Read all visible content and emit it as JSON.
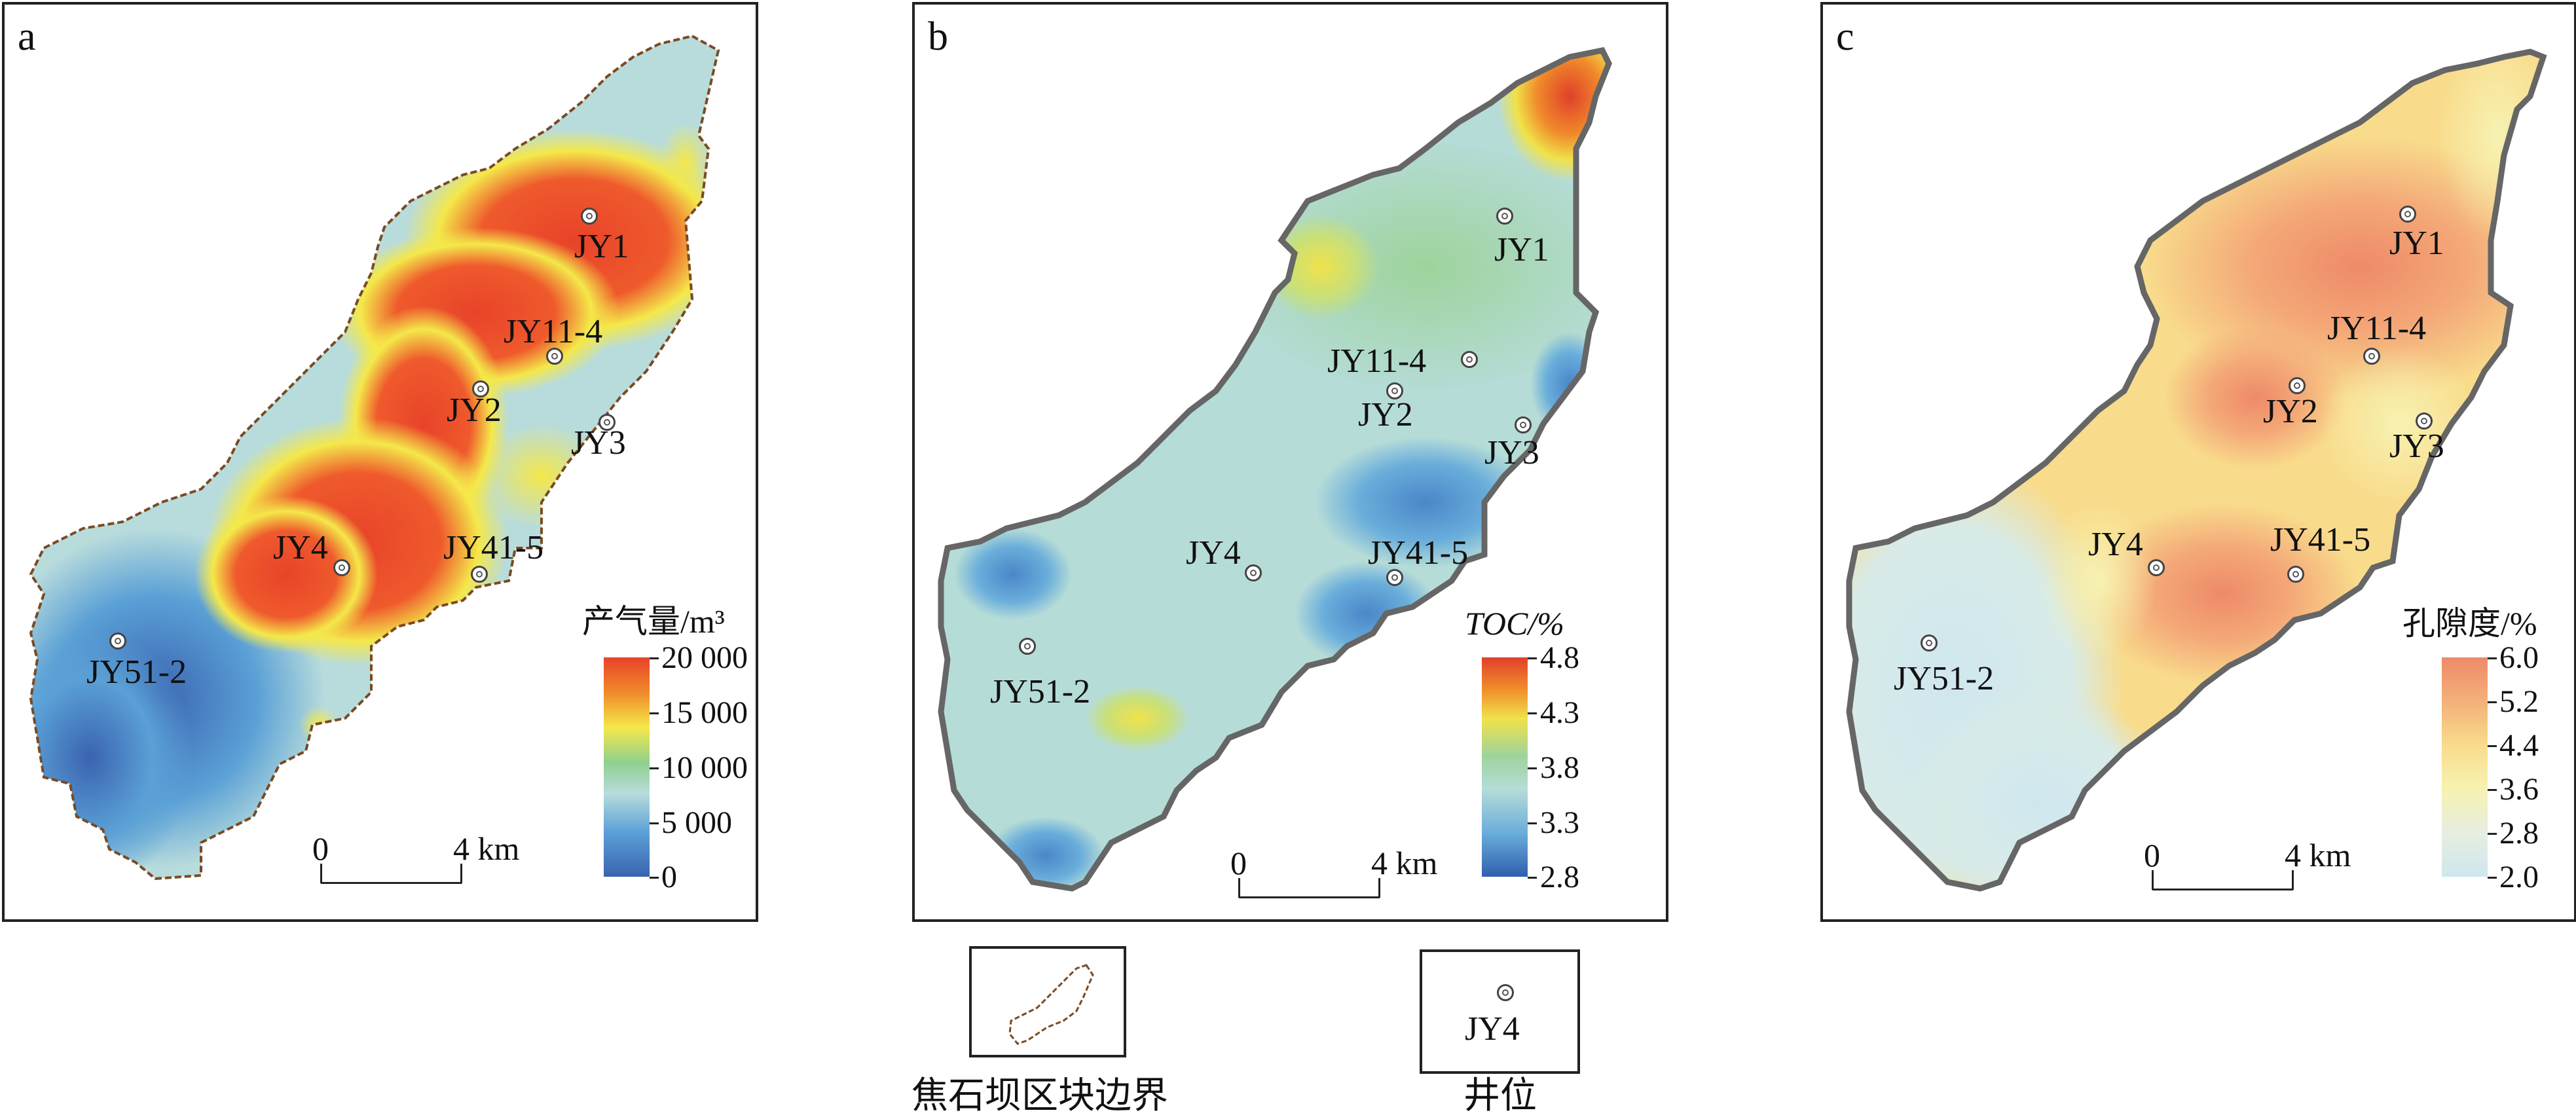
{
  "panels": [
    {
      "letter": "a",
      "legend_title": "产气量/m³",
      "legend_ticks": [
        "20 000",
        "15 000",
        "10 000",
        "5 000",
        "0"
      ],
      "legend_range": [
        0,
        20000
      ],
      "scale_labels": [
        "0",
        "4 km"
      ],
      "wells": [
        "JY1",
        "JY11-4",
        "JY2",
        "JY3",
        "JY4",
        "JY41-5",
        "JY51-2"
      ],
      "colormap": [
        "#3a63b0",
        "#5aa0d6",
        "#b8dcdc",
        "#8fd08f",
        "#f4e84a",
        "#f08a2a",
        "#e8432a"
      ]
    },
    {
      "letter": "b",
      "legend_title": "TOC/%",
      "legend_ticks": [
        "4.8",
        "4.3",
        "3.8",
        "3.3",
        "2.8"
      ],
      "legend_range": [
        2.8,
        4.8
      ],
      "scale_labels": [
        "0",
        "4 km"
      ],
      "wells": [
        "JY1",
        "JY11-4",
        "JY2",
        "JY3",
        "JY4",
        "JY41-5",
        "JY51-2"
      ],
      "colormap": [
        "#2f5fae",
        "#6aaedb",
        "#b6dcd8",
        "#9ed39c",
        "#f0e24a",
        "#f08a2a",
        "#e0402a"
      ]
    },
    {
      "letter": "c",
      "legend_title": "孔隙度/%",
      "legend_ticks": [
        "6.0",
        "5.2",
        "4.4",
        "3.6",
        "2.8",
        "2.0"
      ],
      "legend_range": [
        2.0,
        6.0
      ],
      "scale_labels": [
        "0",
        "4 km"
      ],
      "wells": [
        "JY1",
        "JY11-4",
        "JY2",
        "JY3",
        "JY4",
        "JY41-5",
        "JY51-2"
      ],
      "colormap": [
        "#cfe7ef",
        "#e6eee0",
        "#f7f2b2",
        "#f8dc8c",
        "#f4b07a",
        "#ee8a68"
      ]
    }
  ],
  "legend": {
    "boundary_label": "焦石坝区块边界",
    "well_label": "井位",
    "well_sample": "JY4"
  }
}
